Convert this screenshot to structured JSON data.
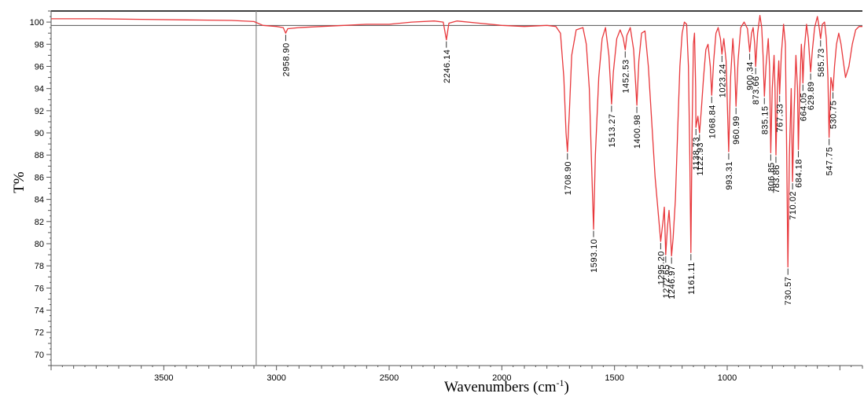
{
  "chart_data": {
    "type": "line",
    "xlabel": "Wavenumbers (cm",
    "xlabel_sup": "-1",
    "xlabel_tail": ")",
    "ylabel": "T%",
    "xlim": [
      4000,
      400
    ],
    "ylim": [
      69,
      101
    ],
    "x_reversed": true,
    "line_color": "#e8383c",
    "grid": false,
    "baseline_T": 99.7,
    "cursor_x": 3090,
    "y_ticks": [
      70,
      72,
      74,
      76,
      78,
      80,
      82,
      84,
      86,
      88,
      90,
      92,
      94,
      96,
      98,
      100
    ],
    "x_ticks": [
      3500,
      3000,
      2500,
      2000,
      1500,
      1000
    ],
    "peaks": [
      {
        "label": "2958.90",
        "x": 2958.9,
        "y": 99.0
      },
      {
        "label": "2246.14",
        "x": 2246.14,
        "y": 98.4
      },
      {
        "label": "1708.90",
        "x": 1708.9,
        "y": 88.3
      },
      {
        "label": "1593.10",
        "x": 1593.1,
        "y": 81.3
      },
      {
        "label": "1513.27",
        "x": 1513.27,
        "y": 92.6
      },
      {
        "label": "1452.53",
        "x": 1452.53,
        "y": 97.5
      },
      {
        "label": "1400.98",
        "x": 1400.98,
        "y": 92.5
      },
      {
        "label": "1295.20",
        "x": 1295.2,
        "y": 80.2
      },
      {
        "label": "1272.65",
        "x": 1272.65,
        "y": 79.0
      },
      {
        "label": "1246.97",
        "x": 1246.97,
        "y": 78.9
      },
      {
        "label": "1161.11",
        "x": 1161.11,
        "y": 79.2
      },
      {
        "label": "1138.73",
        "x": 1138.73,
        "y": 90.5
      },
      {
        "label": "1122.93",
        "x": 1122.93,
        "y": 90.0
      },
      {
        "label": "1068.84",
        "x": 1068.84,
        "y": 93.4
      },
      {
        "label": "1023.24",
        "x": 1023.24,
        "y": 97.1
      },
      {
        "label": "993.31",
        "x": 993.31,
        "y": 88.3
      },
      {
        "label": "960.99",
        "x": 960.99,
        "y": 92.4
      },
      {
        "label": "900.34",
        "x": 900.34,
        "y": 97.3
      },
      {
        "label": "873.66",
        "x": 873.66,
        "y": 96.0
      },
      {
        "label": "835.15",
        "x": 835.15,
        "y": 93.3
      },
      {
        "label": "806.85",
        "x": 806.85,
        "y": 88.2
      },
      {
        "label": "783.86",
        "x": 783.86,
        "y": 88.0
      },
      {
        "label": "767.33",
        "x": 767.33,
        "y": 93.5
      },
      {
        "label": "730.57",
        "x": 730.57,
        "y": 77.9
      },
      {
        "label": "710.02",
        "x": 710.02,
        "y": 85.6
      },
      {
        "label": "684.18",
        "x": 684.18,
        "y": 88.5
      },
      {
        "label": "664.05",
        "x": 664.05,
        "y": 94.5
      },
      {
        "label": "629.89",
        "x": 629.89,
        "y": 95.5
      },
      {
        "label": "585.73",
        "x": 585.73,
        "y": 98.5
      },
      {
        "label": "547.75",
        "x": 547.75,
        "y": 89.6
      },
      {
        "label": "530.75",
        "x": 530.75,
        "y": 93.8
      }
    ],
    "spectrum": [
      [
        4000,
        100.3
      ],
      [
        3800,
        100.3
      ],
      [
        3600,
        100.25
      ],
      [
        3400,
        100.2
      ],
      [
        3200,
        100.15
      ],
      [
        3100,
        100.05
      ],
      [
        3060,
        99.7
      ],
      [
        3000,
        99.6
      ],
      [
        2970,
        99.5
      ],
      [
        2958.9,
        99.0
      ],
      [
        2950,
        99.4
      ],
      [
        2900,
        99.5
      ],
      [
        2800,
        99.6
      ],
      [
        2700,
        99.7
      ],
      [
        2600,
        99.8
      ],
      [
        2500,
        99.8
      ],
      [
        2400,
        100.0
      ],
      [
        2300,
        100.1
      ],
      [
        2260,
        100.0
      ],
      [
        2246.14,
        98.4
      ],
      [
        2235,
        99.9
      ],
      [
        2200,
        100.1
      ],
      [
        2100,
        99.9
      ],
      [
        2000,
        99.7
      ],
      [
        1900,
        99.6
      ],
      [
        1800,
        99.7
      ],
      [
        1760,
        99.6
      ],
      [
        1740,
        99.0
      ],
      [
        1725,
        95.0
      ],
      [
        1715,
        90.0
      ],
      [
        1708.9,
        88.3
      ],
      [
        1700,
        92.0
      ],
      [
        1690,
        97.0
      ],
      [
        1670,
        99.3
      ],
      [
        1640,
        99.5
      ],
      [
        1625,
        98.0
      ],
      [
        1612,
        94.0
      ],
      [
        1600,
        86.0
      ],
      [
        1593.1,
        81.3
      ],
      [
        1585,
        88.0
      ],
      [
        1570,
        95.0
      ],
      [
        1555,
        98.5
      ],
      [
        1540,
        99.5
      ],
      [
        1525,
        97.0
      ],
      [
        1513.27,
        92.6
      ],
      [
        1505,
        95.5
      ],
      [
        1490,
        98.5
      ],
      [
        1475,
        99.3
      ],
      [
        1462,
        98.6
      ],
      [
        1452.53,
        97.5
      ],
      [
        1445,
        98.8
      ],
      [
        1430,
        99.5
      ],
      [
        1415,
        97.5
      ],
      [
        1400.98,
        92.5
      ],
      [
        1392,
        96.5
      ],
      [
        1380,
        99.0
      ],
      [
        1365,
        99.2
      ],
      [
        1350,
        96.0
      ],
      [
        1335,
        91.0
      ],
      [
        1320,
        86.0
      ],
      [
        1305,
        82.5
      ],
      [
        1295.2,
        80.2
      ],
      [
        1285,
        82.0
      ],
      [
        1279,
        83.3
      ],
      [
        1272.65,
        79.0
      ],
      [
        1265,
        81.5
      ],
      [
        1258,
        83.0
      ],
      [
        1252,
        81.0
      ],
      [
        1246.97,
        78.9
      ],
      [
        1240,
        80.5
      ],
      [
        1230,
        84.0
      ],
      [
        1220,
        90.0
      ],
      [
        1210,
        96.0
      ],
      [
        1200,
        99.0
      ],
      [
        1190,
        100.0
      ],
      [
        1180,
        99.8
      ],
      [
        1172,
        96.0
      ],
      [
        1166,
        88.0
      ],
      [
        1161.11,
        79.2
      ],
      [
        1156,
        90.0
      ],
      [
        1150,
        98.0
      ],
      [
        1145,
        99.0
      ],
      [
        1140,
        94.0
      ],
      [
        1138.73,
        90.5
      ],
      [
        1130,
        91.5
      ],
      [
        1122.93,
        90.0
      ],
      [
        1115,
        92.0
      ],
      [
        1105,
        95.0
      ],
      [
        1095,
        97.5
      ],
      [
        1085,
        98.0
      ],
      [
        1075,
        96.0
      ],
      [
        1068.84,
        93.4
      ],
      [
        1060,
        96.5
      ],
      [
        1050,
        99.0
      ],
      [
        1040,
        99.5
      ],
      [
        1030,
        98.5
      ],
      [
        1023.24,
        97.1
      ],
      [
        1015,
        98.5
      ],
      [
        1005,
        96.5
      ],
      [
        993.31,
        88.3
      ],
      [
        985,
        95.0
      ],
      [
        975,
        98.5
      ],
      [
        967,
        96.0
      ],
      [
        960.99,
        92.4
      ],
      [
        952,
        96.5
      ],
      [
        940,
        99.5
      ],
      [
        925,
        100.0
      ],
      [
        910,
        99.4
      ],
      [
        900.34,
        97.3
      ],
      [
        892,
        99.0
      ],
      [
        885,
        99.5
      ],
      [
        878,
        98.0
      ],
      [
        873.66,
        96.0
      ],
      [
        865,
        99.0
      ],
      [
        855,
        100.6
      ],
      [
        847,
        99.5
      ],
      [
        841,
        97.0
      ],
      [
        835.15,
        93.3
      ],
      [
        828,
        96.0
      ],
      [
        818,
        98.5
      ],
      [
        812,
        96.0
      ],
      [
        806.85,
        88.2
      ],
      [
        800,
        94.0
      ],
      [
        792,
        97.0
      ],
      [
        788,
        94.0
      ],
      [
        783.86,
        88.0
      ],
      [
        777,
        94.0
      ],
      [
        771,
        96.5
      ],
      [
        767.33,
        93.5
      ],
      [
        760,
        97.0
      ],
      [
        750,
        99.8
      ],
      [
        742,
        98.0
      ],
      [
        736,
        88.0
      ],
      [
        730.57,
        77.9
      ],
      [
        724,
        88.0
      ],
      [
        716,
        94.0
      ],
      [
        710.02,
        85.6
      ],
      [
        703,
        92.0
      ],
      [
        695,
        97.0
      ],
      [
        688,
        94.0
      ],
      [
        684.18,
        88.5
      ],
      [
        678,
        94.0
      ],
      [
        671,
        98.0
      ],
      [
        667,
        96.5
      ],
      [
        664.05,
        94.5
      ],
      [
        658,
        97.5
      ],
      [
        648,
        99.8
      ],
      [
        640,
        98.5
      ],
      [
        635,
        97.0
      ],
      [
        629.89,
        95.5
      ],
      [
        622,
        97.5
      ],
      [
        612,
        99.5
      ],
      [
        600,
        100.5
      ],
      [
        592,
        99.5
      ],
      [
        585.73,
        98.5
      ],
      [
        578,
        99.8
      ],
      [
        568,
        100.0
      ],
      [
        560,
        98.5
      ],
      [
        553,
        95.0
      ],
      [
        547.75,
        89.6
      ],
      [
        540,
        95.0
      ],
      [
        535,
        94.5
      ],
      [
        530.75,
        93.8
      ],
      [
        524,
        96.0
      ],
      [
        515,
        98.0
      ],
      [
        505,
        99.0
      ],
      [
        495,
        98.0
      ],
      [
        485,
        96.5
      ],
      [
        475,
        95.0
      ],
      [
        460,
        96.0
      ],
      [
        445,
        98.0
      ],
      [
        430,
        99.3
      ],
      [
        415,
        99.6
      ],
      [
        400,
        99.6
      ]
    ]
  }
}
